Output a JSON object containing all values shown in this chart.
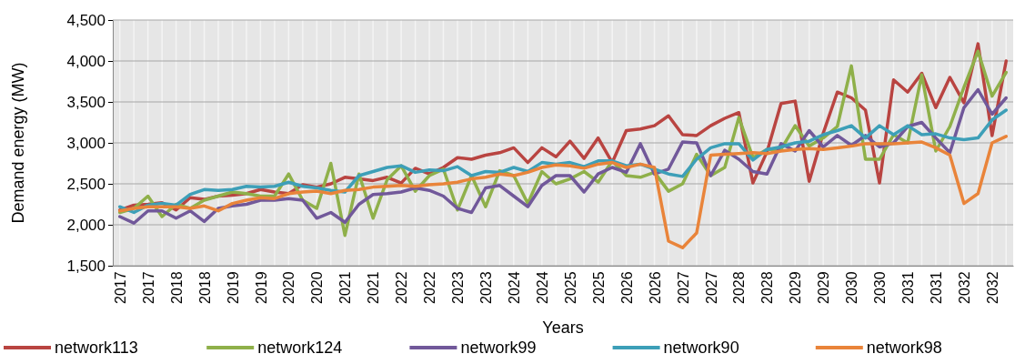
{
  "chart_data": {
    "type": "line",
    "xlabel": "Years",
    "ylabel": "Demand energy (MW)",
    "categories": [
      "2017",
      null,
      "2017",
      null,
      "2018",
      null,
      "2018",
      null,
      "2019",
      null,
      "2019",
      null,
      "2020",
      null,
      "2020",
      null,
      "2021",
      null,
      "2021",
      null,
      "2022",
      null,
      "2022",
      null,
      "2023",
      null,
      "2023",
      null,
      "2024",
      null,
      "2024",
      null,
      "2025",
      null,
      "2025",
      null,
      "2026",
      null,
      "2026",
      null,
      "2027",
      null,
      "2027",
      null,
      "2028",
      null,
      "2028",
      null,
      "2029",
      null,
      "2029",
      null,
      "2030",
      null,
      "2030",
      null,
      "2031",
      null,
      "2031",
      null,
      "2032",
      null,
      "2032",
      null
    ],
    "ylim": [
      1500,
      4500
    ],
    "yticks": [
      {
        "value": 1500,
        "label": "1,500"
      },
      {
        "value": 2000,
        "label": "2,000"
      },
      {
        "value": 2500,
        "label": "2,500"
      },
      {
        "value": 3000,
        "label": "3,000"
      },
      {
        "value": 3500,
        "label": "3,500"
      },
      {
        "value": 4000,
        "label": "4,000"
      },
      {
        "value": 4500,
        "label": "4,500"
      }
    ],
    "grid": true,
    "legend": "bottom",
    "marker": "none",
    "line_style": "solid",
    "series": [
      {
        "name": "network113",
        "color": "#b94441",
        "values": [
          2180,
          2240,
          2250,
          2270,
          2180,
          2330,
          2310,
          2350,
          2360,
          2380,
          2430,
          2400,
          2380,
          2490,
          2460,
          2500,
          2580,
          2560,
          2540,
          2580,
          2510,
          2690,
          2620,
          2700,
          2820,
          2800,
          2850,
          2880,
          2940,
          2760,
          2940,
          2830,
          3020,
          2810,
          3060,
          2760,
          3150,
          3170,
          3210,
          3330,
          3100,
          3090,
          3210,
          3300,
          3370,
          2510,
          2890,
          3480,
          3510,
          2530,
          3120,
          3620,
          3550,
          3400,
          2510,
          3770,
          3620,
          3850,
          3430,
          3800,
          3490,
          4210,
          3090,
          4000
        ]
      },
      {
        "name": "network124",
        "color": "#8fb04a",
        "values": [
          2150,
          2200,
          2350,
          2100,
          2250,
          2200,
          2300,
          2350,
          2400,
          2380,
          2350,
          2350,
          2620,
          2300,
          2200,
          2750,
          1870,
          2620,
          2080,
          2550,
          2720,
          2410,
          2600,
          2680,
          2180,
          2600,
          2220,
          2660,
          2600,
          2260,
          2650,
          2500,
          2560,
          2650,
          2520,
          2780,
          2600,
          2580,
          2640,
          2410,
          2500,
          2860,
          2600,
          2700,
          3310,
          2820,
          2920,
          2920,
          3210,
          2960,
          3060,
          3200,
          3940,
          2800,
          2800,
          3100,
          3000,
          3830,
          2900,
          3200,
          3680,
          4120,
          3570,
          3860
        ]
      },
      {
        "name": "network99",
        "color": "#71589a",
        "values": [
          2100,
          2020,
          2170,
          2170,
          2080,
          2170,
          2040,
          2200,
          2230,
          2250,
          2300,
          2300,
          2320,
          2300,
          2080,
          2150,
          2030,
          2250,
          2370,
          2380,
          2400,
          2450,
          2420,
          2350,
          2200,
          2150,
          2450,
          2480,
          2350,
          2220,
          2480,
          2600,
          2600,
          2400,
          2620,
          2700,
          2640,
          2990,
          2620,
          2680,
          3010,
          3000,
          2600,
          2910,
          2800,
          2650,
          2620,
          2990,
          2900,
          3150,
          2950,
          3090,
          2970,
          3090,
          2950,
          3000,
          3200,
          3250,
          3060,
          2880,
          3430,
          3650,
          3350,
          3550
        ]
      },
      {
        "name": "network90",
        "color": "#3d9fb8",
        "values": [
          2220,
          2150,
          2240,
          2260,
          2240,
          2370,
          2430,
          2420,
          2430,
          2470,
          2460,
          2470,
          2520,
          2470,
          2450,
          2420,
          2400,
          2600,
          2650,
          2700,
          2720,
          2640,
          2670,
          2660,
          2710,
          2600,
          2650,
          2640,
          2700,
          2650,
          2760,
          2740,
          2760,
          2710,
          2780,
          2780,
          2720,
          2740,
          2680,
          2620,
          2590,
          2800,
          2940,
          2990,
          2990,
          2790,
          2920,
          2950,
          3000,
          3020,
          3100,
          3150,
          3210,
          3060,
          3210,
          3100,
          3210,
          3100,
          3110,
          3060,
          3040,
          3060,
          3280,
          3400
        ]
      },
      {
        "name": "network98",
        "color": "#e9843a",
        "values": [
          2170,
          2200,
          2220,
          2220,
          2220,
          2200,
          2230,
          2170,
          2260,
          2300,
          2330,
          2320,
          2380,
          2400,
          2410,
          2380,
          2420,
          2430,
          2460,
          2470,
          2480,
          2470,
          2490,
          2500,
          2520,
          2560,
          2580,
          2620,
          2600,
          2640,
          2700,
          2730,
          2720,
          2690,
          2740,
          2760,
          2700,
          2740,
          2700,
          1800,
          1720,
          1900,
          2850,
          2860,
          2870,
          2880,
          2870,
          2900,
          2920,
          2930,
          2920,
          2940,
          2960,
          2990,
          2990,
          2990,
          3000,
          3010,
          2940,
          2850,
          2260,
          2380,
          3000,
          3080
        ]
      }
    ]
  }
}
